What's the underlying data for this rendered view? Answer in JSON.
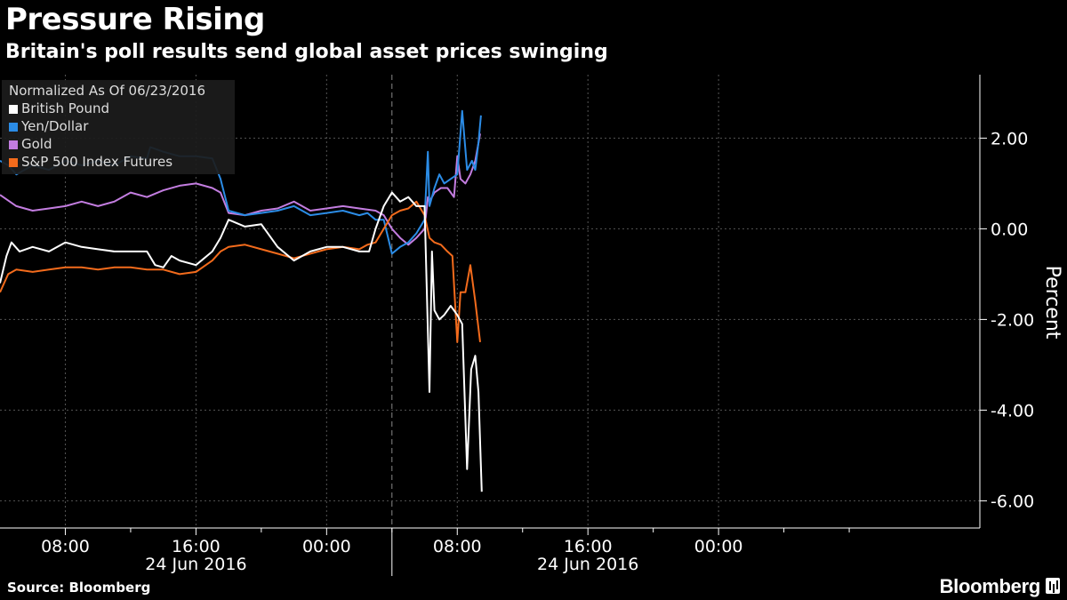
{
  "header": {
    "title": "Pressure Rising",
    "subtitle": "Britain's poll results send global asset prices swinging"
  },
  "footer": {
    "source": "Source: Bloomberg",
    "brand": "Bloomberg"
  },
  "chart_data": {
    "type": "line",
    "legend_title": "Normalized As Of 06/23/2016",
    "legend_position": "top-left",
    "ylabel": "Percent",
    "ylim": [
      -6.6,
      3.4
    ],
    "y_ticks": [
      2.0,
      0.0,
      -2.0,
      -4.0,
      -6.0
    ],
    "y_tick_labels": [
      "2.00",
      "0.00",
      "-2.00",
      "-4.00",
      "-6.00"
    ],
    "x_unit": "hours from 06/23/2016 04:00",
    "xlim": [
      0,
      60
    ],
    "x_ticks": [
      {
        "x": 4,
        "label": "08:00"
      },
      {
        "x": 12,
        "label": "16:00"
      },
      {
        "x": 20,
        "label": "00:00"
      },
      {
        "x": 28,
        "label": "08:00"
      },
      {
        "x": 36,
        "label": "16:00"
      },
      {
        "x": 44,
        "label": "00:00"
      }
    ],
    "x_minor_ticks": [
      8,
      16,
      24,
      32,
      40,
      48,
      52
    ],
    "date_labels": [
      {
        "x": 12,
        "label": "24 Jun 2016"
      },
      {
        "x": 36,
        "label": "24 Jun 2016"
      }
    ],
    "day_dividers": [
      24
    ],
    "grid": true,
    "series": [
      {
        "name": "British Pound",
        "color": "#ffffff",
        "x": [
          0,
          0.4,
          0.7,
          1.2,
          2,
          3,
          4,
          5,
          6,
          7,
          8,
          8.5,
          9,
          9.5,
          10,
          10.5,
          11,
          12,
          13,
          13.5,
          14,
          15,
          16,
          17,
          18,
          19,
          20,
          21,
          22,
          22.6,
          23,
          23.5,
          24,
          24.5,
          25,
          25.5,
          26,
          26.3,
          26.45,
          26.6,
          26.9,
          27.2,
          27.6,
          28,
          28.3,
          28.6,
          28.85,
          29.1,
          29.3,
          29.5
        ],
        "values": [
          -1.2,
          -0.6,
          -0.3,
          -0.5,
          -0.4,
          -0.5,
          -0.3,
          -0.4,
          -0.45,
          -0.5,
          -0.5,
          -0.5,
          -0.5,
          -0.8,
          -0.85,
          -0.6,
          -0.7,
          -0.8,
          -0.5,
          -0.2,
          0.2,
          0.05,
          0.1,
          -0.4,
          -0.7,
          -0.5,
          -0.4,
          -0.4,
          -0.5,
          -0.5,
          0.0,
          0.5,
          0.8,
          0.6,
          0.7,
          0.5,
          0.5,
          -3.6,
          -0.5,
          -1.8,
          -2.0,
          -1.9,
          -1.7,
          -1.9,
          -2.1,
          -5.3,
          -3.1,
          -2.8,
          -3.6,
          -5.8
        ]
      },
      {
        "name": "Yen/Dollar",
        "color": "#2b8ce6",
        "x": [
          0,
          0.5,
          1,
          2,
          3,
          4,
          5,
          6,
          7,
          8,
          9,
          9.2,
          10,
          11,
          12,
          13,
          13.5,
          14,
          15,
          16,
          17,
          18,
          19,
          20,
          21,
          22,
          22.5,
          23,
          23.5,
          24,
          24.5,
          25,
          25.5,
          26,
          26.2,
          26.3,
          26.6,
          26.9,
          27.2,
          27.6,
          28,
          28.3,
          28.6,
          28.9,
          29.1,
          29.3,
          29.45
        ],
        "values": [
          1.5,
          1.4,
          1.2,
          1.4,
          1.3,
          1.5,
          1.4,
          1.5,
          1.4,
          1.6,
          1.55,
          1.8,
          1.7,
          1.6,
          1.6,
          1.55,
          1.1,
          0.4,
          0.3,
          0.35,
          0.4,
          0.5,
          0.3,
          0.35,
          0.4,
          0.3,
          0.35,
          0.2,
          0.2,
          -0.55,
          -0.4,
          -0.3,
          -0.1,
          0.2,
          1.7,
          0.5,
          0.9,
          1.2,
          1.0,
          1.1,
          1.2,
          2.6,
          1.3,
          1.5,
          1.3,
          1.9,
          2.5
        ]
      },
      {
        "name": "Gold",
        "color": "#c37de0",
        "x": [
          0,
          1,
          2,
          3,
          4,
          5,
          6,
          7,
          8,
          9,
          10,
          11,
          12,
          13,
          13.5,
          14,
          15,
          16,
          17,
          18,
          19,
          20,
          21,
          22,
          23,
          23.5,
          24,
          24.5,
          25,
          25.5,
          26,
          26.2,
          26.3,
          26.6,
          27,
          27.4,
          27.8,
          28,
          28.2,
          28.5,
          28.8,
          29.1,
          29.4
        ],
        "values": [
          0.75,
          0.5,
          0.4,
          0.45,
          0.5,
          0.6,
          0.5,
          0.6,
          0.8,
          0.7,
          0.85,
          0.95,
          1.0,
          0.9,
          0.8,
          0.35,
          0.3,
          0.4,
          0.45,
          0.6,
          0.4,
          0.45,
          0.5,
          0.45,
          0.4,
          0.3,
          0.0,
          -0.2,
          -0.35,
          -0.2,
          0.0,
          0.7,
          0.6,
          0.8,
          0.9,
          0.9,
          0.7,
          1.6,
          1.1,
          1.0,
          1.2,
          1.5,
          2.1
        ]
      },
      {
        "name": "S&P 500 Index Futures",
        "color": "#f36b1c",
        "x": [
          0,
          0.5,
          1,
          2,
          3,
          4,
          5,
          6,
          7,
          8,
          9,
          10,
          11,
          12,
          13,
          13.5,
          14,
          15,
          16,
          17,
          18,
          19,
          20,
          21,
          22,
          22.5,
          23,
          23.5,
          24,
          24.5,
          25,
          25.5,
          26,
          26.3,
          26.6,
          27,
          27.4,
          27.7,
          28,
          28.2,
          28.5,
          28.8,
          29.1,
          29.4
        ],
        "values": [
          -1.4,
          -1.0,
          -0.9,
          -0.95,
          -0.9,
          -0.85,
          -0.85,
          -0.9,
          -0.85,
          -0.85,
          -0.9,
          -0.9,
          -1.0,
          -0.95,
          -0.7,
          -0.5,
          -0.4,
          -0.35,
          -0.45,
          -0.55,
          -0.65,
          -0.55,
          -0.45,
          -0.4,
          -0.45,
          -0.35,
          -0.3,
          0.0,
          0.3,
          0.4,
          0.45,
          0.6,
          0.3,
          -0.2,
          -0.3,
          -0.35,
          -0.5,
          -0.6,
          -2.5,
          -1.4,
          -1.4,
          -0.8,
          -1.6,
          -2.5
        ]
      }
    ]
  }
}
